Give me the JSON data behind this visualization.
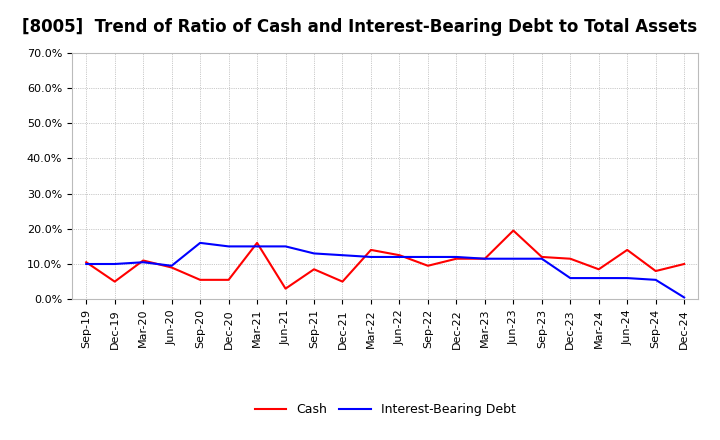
{
  "title": "[8005]  Trend of Ratio of Cash and Interest-Bearing Debt to Total Assets",
  "x_labels": [
    "Sep-19",
    "Dec-19",
    "Mar-20",
    "Jun-20",
    "Sep-20",
    "Dec-20",
    "Mar-21",
    "Jun-21",
    "Sep-21",
    "Dec-21",
    "Mar-22",
    "Jun-22",
    "Sep-22",
    "Dec-22",
    "Mar-23",
    "Jun-23",
    "Sep-23",
    "Dec-23",
    "Mar-24",
    "Jun-24",
    "Sep-24",
    "Dec-24"
  ],
  "cash": [
    10.5,
    5.0,
    11.0,
    9.0,
    5.5,
    5.5,
    16.0,
    3.0,
    8.5,
    5.0,
    14.0,
    12.5,
    9.5,
    11.5,
    11.5,
    19.5,
    12.0,
    11.5,
    8.5,
    14.0,
    8.0,
    10.0
  ],
  "ibd": [
    10.0,
    10.0,
    10.5,
    9.5,
    16.0,
    15.0,
    15.0,
    15.0,
    13.0,
    12.5,
    12.0,
    12.0,
    12.0,
    12.0,
    11.5,
    11.5,
    11.5,
    6.0,
    6.0,
    6.0,
    5.5,
    0.5
  ],
  "cash_color": "#ff0000",
  "ibd_color": "#0000ff",
  "ylim": [
    0,
    70
  ],
  "yticks": [
    0,
    10,
    20,
    30,
    40,
    50,
    60,
    70
  ],
  "ytick_labels": [
    "0.0%",
    "10.0%",
    "20.0%",
    "30.0%",
    "40.0%",
    "50.0%",
    "60.0%",
    "70.0%"
  ],
  "background_color": "#ffffff",
  "grid_color": "#999999",
  "legend_cash": "Cash",
  "legend_ibd": "Interest-Bearing Debt",
  "title_fontsize": 12,
  "axis_fontsize": 8,
  "legend_fontsize": 9
}
